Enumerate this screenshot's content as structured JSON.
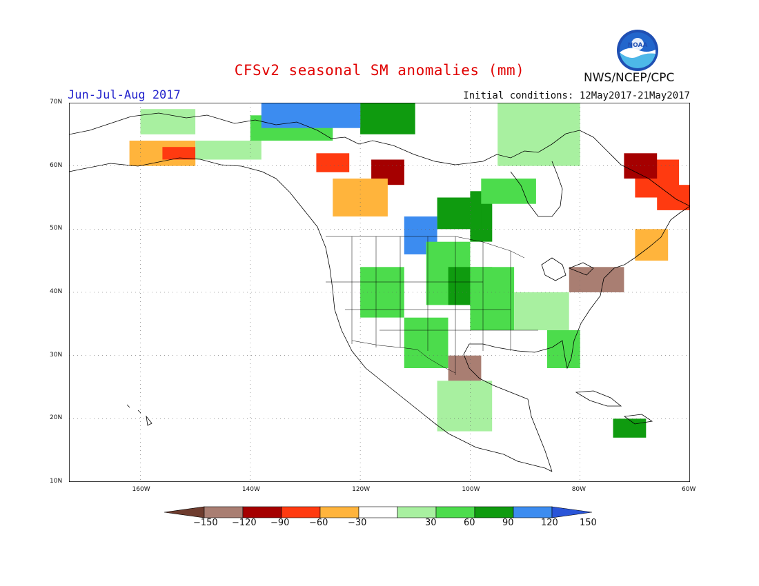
{
  "title": "CFSv2 seasonal SM anomalies (mm)",
  "period": "Jun-Jul-Aug 2017",
  "initial_conditions": "Initial conditions: 12May2017-21May2017",
  "organization": "NWS/NCEP/CPC",
  "logo_text": "NOAA",
  "map": {
    "lon_range": [
      -173,
      -60
    ],
    "lat_range": [
      10,
      70
    ],
    "lon_ticks": [
      {
        "value": -160,
        "label": "160W"
      },
      {
        "value": -140,
        "label": "140W"
      },
      {
        "value": -120,
        "label": "120W"
      },
      {
        "value": -100,
        "label": "100W"
      },
      {
        "value": -80,
        "label": "80W"
      },
      {
        "value": -60,
        "label": "60W"
      }
    ],
    "lat_ticks": [
      {
        "value": 10,
        "label": "10N"
      },
      {
        "value": 20,
        "label": "20N"
      },
      {
        "value": 30,
        "label": "30N"
      },
      {
        "value": 40,
        "label": "40N"
      },
      {
        "value": 50,
        "label": "50N"
      },
      {
        "value": 60,
        "label": "60N"
      },
      {
        "value": 70,
        "label": "70N"
      }
    ],
    "gridlines": "dotted",
    "coastline_color": "#000000"
  },
  "legend": {
    "labels": [
      "-150",
      "-120",
      "-90",
      "-60",
      "-30",
      "30",
      "60",
      "90",
      "120",
      "150"
    ],
    "colors": [
      "#6e3c2e",
      "#a97e72",
      "#a50000",
      "#ff3a10",
      "#ffb43c",
      "#ffffff",
      "#a8f0a0",
      "#4cdc4c",
      "#0f9b0f",
      "#3c8cf0",
      "#2a55d8"
    ]
  },
  "anomaly_regions": [
    {
      "lon": [
        -100,
        -96
      ],
      "lat": [
        48,
        56
      ],
      "class": 3
    },
    {
      "lon": [
        -106,
        -98
      ],
      "lat": [
        50,
        55
      ],
      "class": 3
    },
    {
      "lon": [
        -112,
        -106
      ],
      "lat": [
        46,
        52
      ],
      "class": 4
    },
    {
      "lon": [
        -108,
        -100
      ],
      "lat": [
        38,
        48
      ],
      "class": 2
    },
    {
      "lon": [
        -104,
        -96
      ],
      "lat": [
        38,
        44
      ],
      "class": 3
    },
    {
      "lon": [
        -100,
        -92
      ],
      "lat": [
        34,
        44
      ],
      "class": 2
    },
    {
      "lon": [
        -120,
        -112
      ],
      "lat": [
        36,
        44
      ],
      "class": 2
    },
    {
      "lon": [
        -112,
        -104
      ],
      "lat": [
        28,
        36
      ],
      "class": 2
    },
    {
      "lon": [
        -92,
        -82
      ],
      "lat": [
        34,
        40
      ],
      "class": 1
    },
    {
      "lon": [
        -86,
        -80
      ],
      "lat": [
        28,
        34
      ],
      "class": 2
    },
    {
      "lon": [
        -98,
        -88
      ],
      "lat": [
        54,
        58
      ],
      "class": 2
    },
    {
      "lon": [
        -118,
        -112
      ],
      "lat": [
        57,
        61
      ],
      "class": -3
    },
    {
      "lon": [
        -128,
        -122
      ],
      "lat": [
        59,
        62
      ],
      "class": -2
    },
    {
      "lon": [
        -70,
        -62
      ],
      "lat": [
        55,
        61
      ],
      "class": -2
    },
    {
      "lon": [
        -72,
        -66
      ],
      "lat": [
        58,
        62
      ],
      "class": -3
    },
    {
      "lon": [
        -66,
        -60
      ],
      "lat": [
        53,
        57
      ],
      "class": -2
    },
    {
      "lon": [
        -70,
        -64
      ],
      "lat": [
        45,
        50
      ],
      "class": -1
    },
    {
      "lon": [
        -162,
        -150
      ],
      "lat": [
        60,
        64
      ],
      "class": -1
    },
    {
      "lon": [
        -156,
        -150
      ],
      "lat": [
        61,
        63
      ],
      "class": -2
    },
    {
      "lon": [
        -150,
        -138
      ],
      "lat": [
        61,
        64
      ],
      "class": 1
    },
    {
      "lon": [
        -160,
        -150
      ],
      "lat": [
        65,
        69
      ],
      "class": 1
    },
    {
      "lon": [
        -140,
        -125
      ],
      "lat": [
        64,
        68
      ],
      "class": 2
    },
    {
      "lon": [
        -120,
        -110
      ],
      "lat": [
        65,
        70
      ],
      "class": 3
    },
    {
      "lon": [
        -138,
        -120
      ],
      "lat": [
        66,
        70
      ],
      "class": 4
    },
    {
      "lon": [
        -95,
        -80
      ],
      "lat": [
        60,
        70
      ],
      "class": 1
    },
    {
      "lon": [
        -125,
        -115
      ],
      "lat": [
        52,
        58
      ],
      "class": -1
    },
    {
      "lon": [
        -104,
        -98
      ],
      "lat": [
        26,
        30
      ],
      "class": -4
    },
    {
      "lon": [
        -82,
        -72
      ],
      "lat": [
        40,
        44
      ],
      "class": -4
    },
    {
      "lon": [
        -106,
        -96
      ],
      "lat": [
        18,
        26
      ],
      "class": 1
    },
    {
      "lon": [
        -74,
        -68
      ],
      "lat": [
        17,
        20
      ],
      "class": 3
    }
  ]
}
